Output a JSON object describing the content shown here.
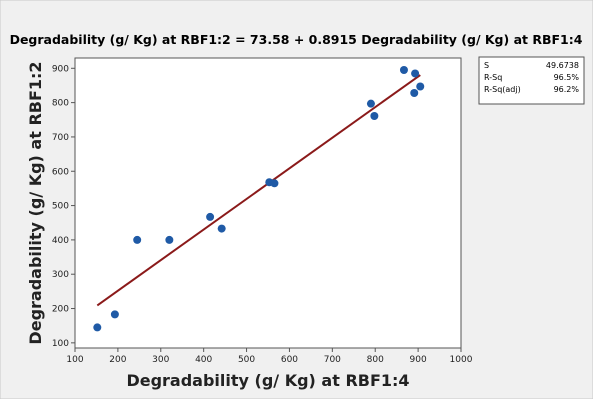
{
  "colors": {
    "background": "#f0f0f0",
    "plot_area": "#ffffff",
    "points": "#1f5aa6",
    "fit_line": "#8b1a1a"
  },
  "chart_data": {
    "type": "scatter",
    "title": "Degradability (g/ Kg) at RBF1:2 = 73.58 + 0.8915 Degradability (g/ Kg) at RBF1:4",
    "xlabel": "Degradability (g/ Kg) at RBF1:4",
    "ylabel": "Degradability (g/ Kg) at RBF1:2",
    "xlim": [
      100,
      1000
    ],
    "ylim": [
      85,
      930
    ],
    "xticks": [
      100,
      200,
      300,
      400,
      500,
      600,
      700,
      800,
      900,
      1000
    ],
    "yticks": [
      100,
      200,
      300,
      400,
      500,
      600,
      700,
      800,
      900
    ],
    "grid": false,
    "points": [
      {
        "x": 152,
        "y": 145
      },
      {
        "x": 193,
        "y": 183
      },
      {
        "x": 245,
        "y": 400
      },
      {
        "x": 320,
        "y": 400
      },
      {
        "x": 415,
        "y": 467
      },
      {
        "x": 442,
        "y": 433
      },
      {
        "x": 553,
        "y": 568
      },
      {
        "x": 565,
        "y": 565
      },
      {
        "x": 790,
        "y": 797
      },
      {
        "x": 798,
        "y": 761
      },
      {
        "x": 867,
        "y": 895
      },
      {
        "x": 891,
        "y": 828
      },
      {
        "x": 893,
        "y": 885
      },
      {
        "x": 905,
        "y": 847
      }
    ],
    "fit": {
      "intercept": 73.58,
      "slope": 0.8915,
      "x_range": [
        152,
        905
      ]
    },
    "stats_table": [
      {
        "label": "S",
        "value": "49.6738"
      },
      {
        "label": "R-Sq",
        "value": "96.5%"
      },
      {
        "label": "R-Sq(adj)",
        "value": "96.2%"
      }
    ]
  }
}
